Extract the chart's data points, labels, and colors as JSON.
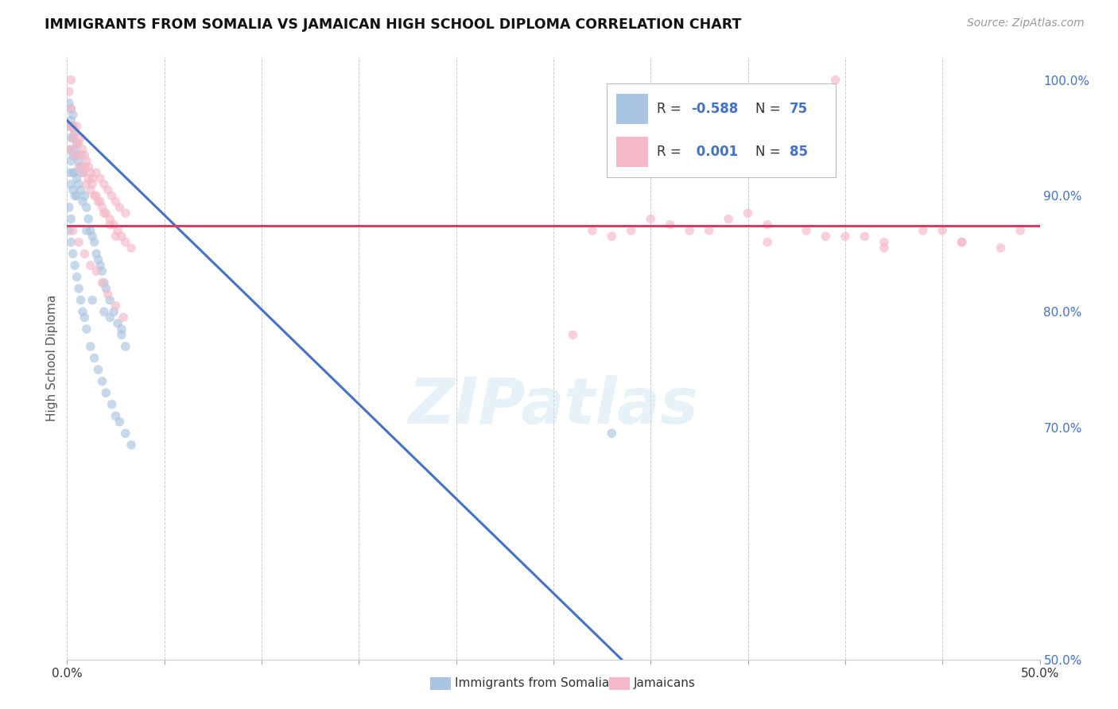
{
  "title": "IMMIGRANTS FROM SOMALIA VS JAMAICAN HIGH SCHOOL DIPLOMA CORRELATION CHART",
  "source": "Source: ZipAtlas.com",
  "ylabel": "High School Diploma",
  "ylabel_right_ticks": [
    "50.0%",
    "70.0%",
    "80.0%",
    "90.0%",
    "100.0%"
  ],
  "ylabel_right_vals": [
    0.5,
    0.7,
    0.8,
    0.9,
    1.0
  ],
  "blue_color": "#a8c4e0",
  "pink_color": "#f4b8c8",
  "blue_line_color": "#4472c4",
  "pink_line_color": "#d04060",
  "title_color": "#111111",
  "source_color": "#999999",
  "right_tick_color": "#4472c4",
  "background_color": "#ffffff",
  "watermark": "ZIPatlas",
  "xlim": [
    0.0,
    0.5
  ],
  "ylim": [
    0.5,
    1.02
  ],
  "blue_scatter_x": [
    0.001,
    0.001,
    0.001,
    0.002,
    0.002,
    0.002,
    0.002,
    0.003,
    0.003,
    0.003,
    0.003,
    0.003,
    0.004,
    0.004,
    0.004,
    0.005,
    0.005,
    0.005,
    0.006,
    0.006,
    0.007,
    0.007,
    0.008,
    0.008,
    0.009,
    0.01,
    0.01,
    0.011,
    0.012,
    0.013,
    0.014,
    0.015,
    0.016,
    0.017,
    0.018,
    0.019,
    0.02,
    0.022,
    0.024,
    0.026,
    0.028,
    0.03,
    0.001,
    0.002,
    0.001,
    0.002,
    0.003,
    0.004,
    0.005,
    0.006,
    0.007,
    0.008,
    0.009,
    0.01,
    0.012,
    0.014,
    0.016,
    0.018,
    0.02,
    0.023,
    0.025,
    0.027,
    0.03,
    0.033,
    0.001,
    0.002,
    0.002,
    0.003,
    0.004,
    0.005,
    0.013,
    0.019,
    0.022,
    0.028,
    0.28
  ],
  "blue_scatter_y": [
    0.96,
    0.94,
    0.92,
    0.96,
    0.95,
    0.93,
    0.91,
    0.97,
    0.95,
    0.935,
    0.92,
    0.905,
    0.94,
    0.92,
    0.9,
    0.935,
    0.915,
    0.9,
    0.93,
    0.91,
    0.925,
    0.905,
    0.92,
    0.895,
    0.9,
    0.89,
    0.87,
    0.88,
    0.87,
    0.865,
    0.86,
    0.85,
    0.845,
    0.84,
    0.835,
    0.825,
    0.82,
    0.81,
    0.8,
    0.79,
    0.78,
    0.77,
    0.89,
    0.88,
    0.87,
    0.86,
    0.85,
    0.84,
    0.83,
    0.82,
    0.81,
    0.8,
    0.795,
    0.785,
    0.77,
    0.76,
    0.75,
    0.74,
    0.73,
    0.72,
    0.71,
    0.705,
    0.695,
    0.685,
    0.98,
    0.975,
    0.965,
    0.96,
    0.955,
    0.945,
    0.81,
    0.8,
    0.795,
    0.785,
    0.695
  ],
  "pink_scatter_x": [
    0.001,
    0.002,
    0.002,
    0.003,
    0.004,
    0.005,
    0.006,
    0.007,
    0.008,
    0.009,
    0.01,
    0.011,
    0.012,
    0.013,
    0.015,
    0.017,
    0.019,
    0.021,
    0.023,
    0.025,
    0.027,
    0.03,
    0.002,
    0.004,
    0.006,
    0.008,
    0.01,
    0.012,
    0.014,
    0.016,
    0.018,
    0.02,
    0.022,
    0.024,
    0.026,
    0.028,
    0.03,
    0.033,
    0.001,
    0.003,
    0.005,
    0.007,
    0.009,
    0.011,
    0.013,
    0.015,
    0.017,
    0.019,
    0.022,
    0.025,
    0.003,
    0.006,
    0.009,
    0.012,
    0.015,
    0.018,
    0.021,
    0.025,
    0.029,
    0.28,
    0.31,
    0.34,
    0.36,
    0.38,
    0.4,
    0.42,
    0.44,
    0.46,
    0.3,
    0.33,
    0.36,
    0.39,
    0.42,
    0.45,
    0.395,
    0.27,
    0.49,
    0.35,
    0.29,
    0.41,
    0.46,
    0.48,
    0.26,
    0.32
  ],
  "pink_scatter_y": [
    0.99,
    0.975,
    1.0,
    0.96,
    0.955,
    0.96,
    0.945,
    0.95,
    0.94,
    0.935,
    0.93,
    0.925,
    0.92,
    0.915,
    0.92,
    0.915,
    0.91,
    0.905,
    0.9,
    0.895,
    0.89,
    0.885,
    0.94,
    0.935,
    0.925,
    0.92,
    0.91,
    0.905,
    0.9,
    0.895,
    0.89,
    0.885,
    0.88,
    0.875,
    0.87,
    0.865,
    0.86,
    0.855,
    0.96,
    0.95,
    0.945,
    0.935,
    0.925,
    0.915,
    0.91,
    0.9,
    0.895,
    0.885,
    0.875,
    0.865,
    0.87,
    0.86,
    0.85,
    0.84,
    0.835,
    0.825,
    0.815,
    0.805,
    0.795,
    0.865,
    0.875,
    0.88,
    0.86,
    0.87,
    0.865,
    0.855,
    0.87,
    0.86,
    0.88,
    0.87,
    0.875,
    0.865,
    0.86,
    0.87,
    1.0,
    0.87,
    0.87,
    0.885,
    0.87,
    0.865,
    0.86,
    0.855,
    0.78,
    0.87
  ],
  "blue_trendline_x": [
    0.0,
    0.285
  ],
  "blue_trendline_y": [
    0.965,
    0.5
  ],
  "pink_trendline_x": [
    0.0,
    0.5
  ],
  "pink_trendline_y": [
    0.874,
    0.874
  ],
  "grid_color": "#cccccc",
  "marker_size": 70,
  "marker_alpha": 0.65
}
